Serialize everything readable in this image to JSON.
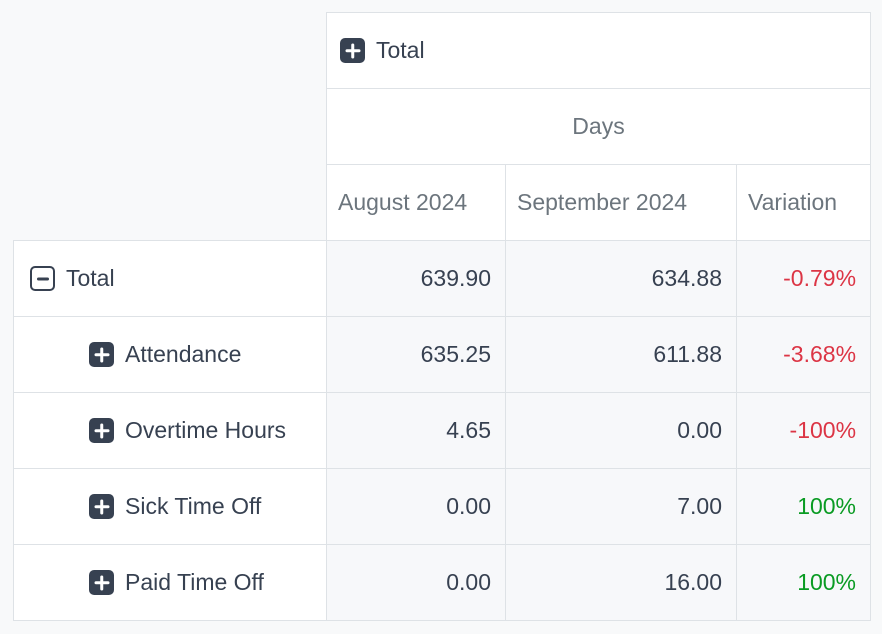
{
  "theme": {
    "page_bg": "#f8f9fa",
    "cell_bg": "#f7f8fa",
    "border": "#dee2e6",
    "ink": "#374151",
    "muted": "#6c757d",
    "negative": "#dc3545",
    "positive": "#0a9b23"
  },
  "table": {
    "top_header": {
      "label": "Total",
      "icon": "plus"
    },
    "measure_header": "Days",
    "columns": [
      "August 2024",
      "September 2024",
      "Variation"
    ],
    "rows": [
      {
        "label": "Total",
        "icon": "minus",
        "level": 0,
        "values": [
          "639.90",
          "634.88"
        ],
        "variation": {
          "text": "-0.79%",
          "direction": "down"
        }
      },
      {
        "label": "Attendance",
        "icon": "plus",
        "level": 1,
        "values": [
          "635.25",
          "611.88"
        ],
        "variation": {
          "text": "-3.68%",
          "direction": "down"
        }
      },
      {
        "label": "Overtime Hours",
        "icon": "plus",
        "level": 1,
        "values": [
          "4.65",
          "0.00"
        ],
        "variation": {
          "text": "-100%",
          "direction": "down"
        }
      },
      {
        "label": "Sick Time Off",
        "icon": "plus",
        "level": 1,
        "values": [
          "0.00",
          "7.00"
        ],
        "variation": {
          "text": "100%",
          "direction": "up"
        }
      },
      {
        "label": "Paid Time Off",
        "icon": "plus",
        "level": 1,
        "values": [
          "0.00",
          "16.00"
        ],
        "variation": {
          "text": "100%",
          "direction": "up"
        }
      }
    ]
  }
}
